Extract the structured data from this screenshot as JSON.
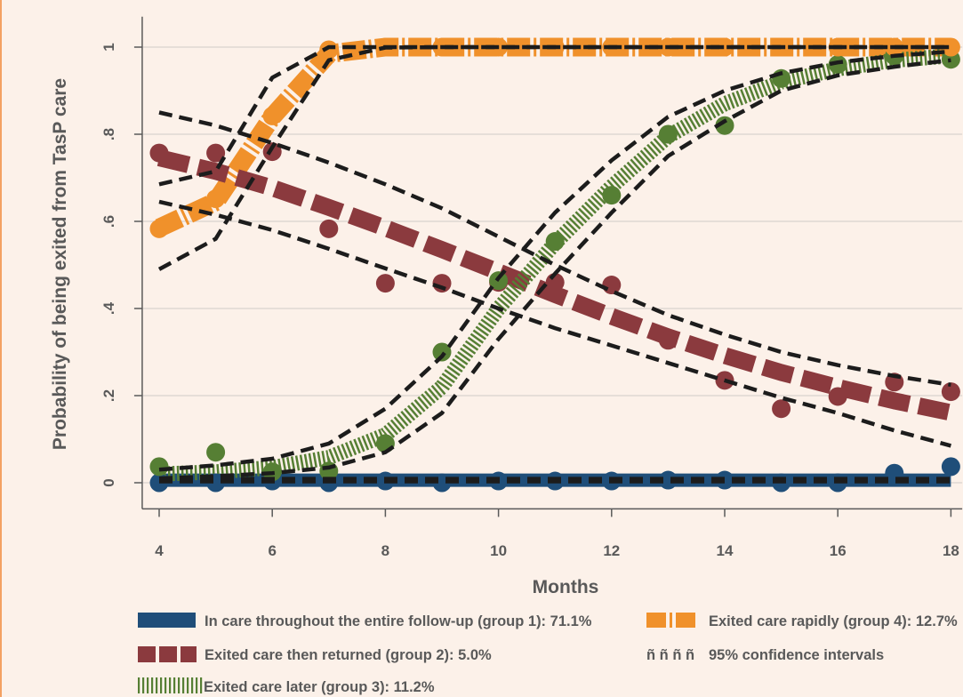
{
  "chart_data": {
    "type": "line",
    "xlabel": "Months",
    "ylabel": "Probability of being exited from TasP care",
    "x": [
      4,
      5,
      6,
      7,
      8,
      9,
      10,
      11,
      12,
      13,
      14,
      15,
      16,
      17,
      18
    ],
    "xticks": [
      4,
      6,
      8,
      10,
      12,
      14,
      16,
      18
    ],
    "yticks": [
      0,
      0.2,
      0.4,
      0.6,
      0.8,
      1
    ],
    "ytick_labels": [
      "0",
      ".2",
      ".4",
      ".6",
      ".8",
      "1"
    ],
    "xlim": [
      3.7,
      18.2
    ],
    "ylim": [
      -0.06,
      1.07
    ],
    "grid": true,
    "legend": "bottom",
    "ci_color": "#1c1c1c",
    "series": [
      {
        "name": "In care throughout the entire follow-up (group 1): 71.1%",
        "color": "#1f4e79",
        "observed": [
          0,
          0,
          0.004,
          0,
          0.004,
          0,
          0.004,
          0.004,
          0.004,
          0.006,
          0.006,
          0,
          0,
          0.022,
          0.037
        ],
        "fitted": [
          0.006,
          0.006,
          0.006,
          0.006,
          0.006,
          0.006,
          0.006,
          0.006,
          0.006,
          0.006,
          0.006,
          0.006,
          0.006,
          0.006,
          0.006
        ],
        "ci_upper": [
          0.009,
          0.009,
          0.009,
          0.009,
          0.009,
          0.009,
          0.009,
          0.009,
          0.009,
          0.009,
          0.009,
          0.009,
          0.009,
          0.009,
          0.009
        ],
        "ci_lower": [
          0.003,
          0.003,
          0.003,
          0.003,
          0.003,
          0.003,
          0.003,
          0.003,
          0.003,
          0.003,
          0.003,
          0.003,
          0.003,
          0.003,
          0.003
        ]
      },
      {
        "name": "Exited care then returned (group 2): 5.0%",
        "color": "#8b3a3e",
        "observed": [
          0.757,
          0.757,
          0.76,
          0.583,
          0.458,
          0.458,
          0.46,
          0.46,
          0.454,
          0.327,
          0.235,
          0.17,
          0.198,
          0.231,
          0.209
        ],
        "fitted": [
          0.746,
          0.715,
          0.677,
          0.632,
          0.585,
          0.535,
          0.484,
          0.432,
          0.382,
          0.335,
          0.292,
          0.253,
          0.219,
          0.188,
          0.161
        ],
        "ci_upper": [
          0.85,
          0.82,
          0.78,
          0.735,
          0.685,
          0.63,
          0.565,
          0.5,
          0.44,
          0.385,
          0.34,
          0.3,
          0.27,
          0.245,
          0.225
        ],
        "ci_lower": [
          0.645,
          0.615,
          0.58,
          0.537,
          0.492,
          0.448,
          0.4,
          0.355,
          0.315,
          0.275,
          0.235,
          0.195,
          0.16,
          0.12,
          0.085
        ]
      },
      {
        "name": "Exited care later (group 3): 11.2%",
        "color": "#567f34",
        "observed": [
          0.037,
          0.07,
          0.025,
          0.027,
          0.09,
          0.3,
          0.464,
          0.554,
          0.66,
          0.8,
          0.82,
          0.928,
          0.96,
          0.98,
          0.972
        ],
        "fitted": [
          0.02,
          0.025,
          0.035,
          0.058,
          0.11,
          0.22,
          0.4,
          0.55,
          0.68,
          0.795,
          0.87,
          0.92,
          0.95,
          0.97,
          0.98
        ],
        "ci_upper": [
          0.03,
          0.04,
          0.055,
          0.09,
          0.17,
          0.29,
          0.47,
          0.62,
          0.74,
          0.84,
          0.9,
          0.94,
          0.965,
          0.98,
          0.99
        ],
        "ci_lower": [
          0.01,
          0.015,
          0.022,
          0.035,
          0.07,
          0.16,
          0.33,
          0.48,
          0.62,
          0.75,
          0.83,
          0.9,
          0.935,
          0.955,
          0.97
        ]
      },
      {
        "name": "Exited care rapidly (group 4): 12.7%",
        "color": "#f0912b",
        "observed": [
          0.583,
          0.652,
          0.842,
          0.994,
          1,
          1,
          1,
          1,
          1,
          1,
          1,
          1,
          1,
          1,
          1
        ],
        "fitted": [
          0.585,
          0.645,
          0.84,
          0.985,
          1,
          1,
          1,
          1,
          1,
          1,
          1,
          1,
          1,
          1,
          1
        ],
        "ci_upper": [
          0.685,
          0.715,
          0.93,
          1,
          1,
          1,
          1,
          1,
          1,
          1,
          1,
          1,
          1,
          1,
          1
        ],
        "ci_lower": [
          0.49,
          0.56,
          0.77,
          0.97,
          0.999,
          1,
          1,
          1,
          1,
          1,
          1,
          1,
          1,
          1,
          1
        ]
      }
    ],
    "ci_legend": {
      "symbol": "ñ ñ ñ ñ",
      "label": "95% confidence intervals"
    }
  }
}
